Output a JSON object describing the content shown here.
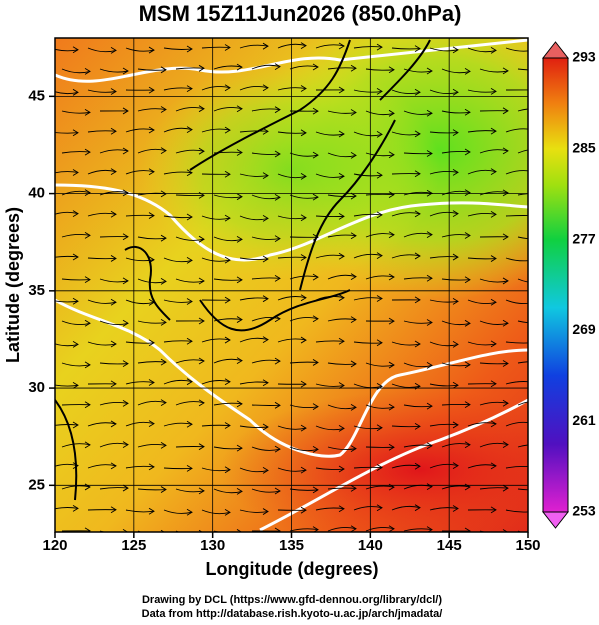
{
  "chart_data": {
    "type": "map",
    "title": "MSM 15Z11Jun2026 (850.0hPa)",
    "x_label": "Longitude (degrees)",
    "y_label": "Latitude  (degrees)",
    "xlim": [
      120,
      150
    ],
    "xticks": [
      120,
      125,
      130,
      135,
      140,
      145,
      150
    ],
    "ylim": [
      22.6,
      48
    ],
    "yticks": [
      25,
      30,
      35,
      40,
      45
    ],
    "grid": true,
    "colorbar": {
      "lim": [
        253,
        293
      ],
      "ticks": [
        253,
        261,
        269,
        277,
        285,
        293
      ]
    },
    "footer": [
      "Drawing by DCL (https://www.gfd-dennou.org/library/dcl/)",
      "Data from http://database.rish.kyoto-u.ac.jp/arch/jmadata/"
    ]
  }
}
